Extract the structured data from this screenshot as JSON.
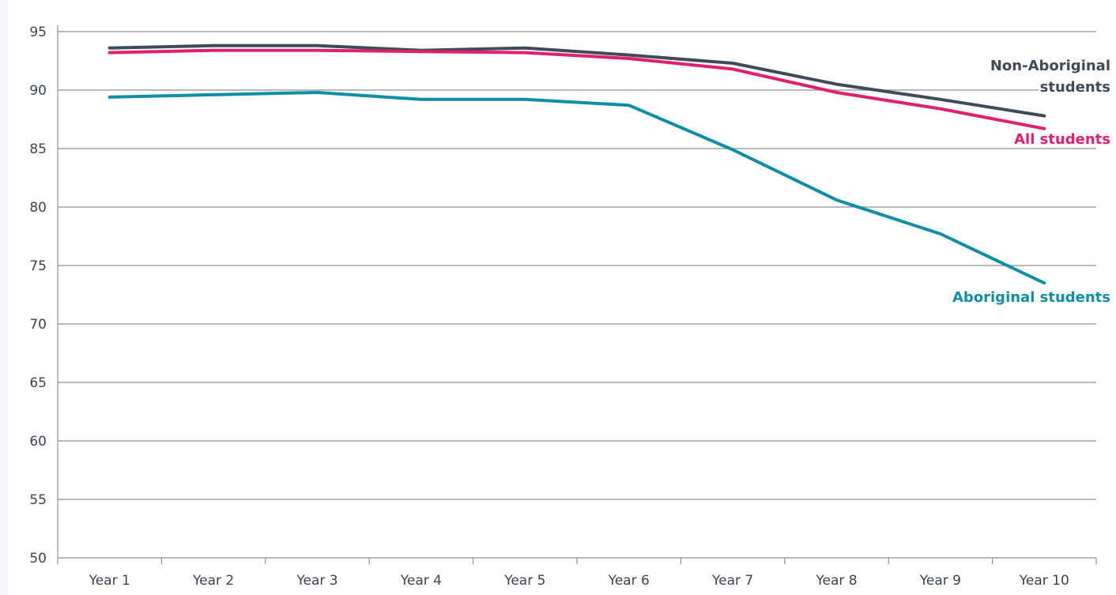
{
  "chart_data": {
    "type": "line",
    "title": "",
    "xlabel": "",
    "ylabel": "",
    "categories": [
      "Year 1",
      "Year 2",
      "Year 3",
      "Year 4",
      "Year 5",
      "Year 6",
      "Year 7",
      "Year 8",
      "Year 9",
      "Year 10"
    ],
    "ylim": [
      50,
      95
    ],
    "yticks": [
      50,
      55,
      60,
      65,
      70,
      75,
      80,
      85,
      90,
      95
    ],
    "grid": true,
    "legend": "inline labels at right end of lines",
    "series": [
      {
        "name": "Non-Aboriginal students",
        "label_lines": [
          "Non-Aboriginal",
          "students"
        ],
        "color": "#3f4a5a",
        "values": [
          93.6,
          93.8,
          93.8,
          93.4,
          93.6,
          93.0,
          92.3,
          90.5,
          89.2,
          87.8
        ]
      },
      {
        "name": "All students",
        "label_lines": [
          "All students"
        ],
        "color": "#e0206f",
        "values": [
          93.2,
          93.4,
          93.4,
          93.3,
          93.2,
          92.7,
          91.8,
          89.8,
          88.4,
          86.7
        ]
      },
      {
        "name": "Aboriginal students",
        "label_lines": [
          "Aboriginal students"
        ],
        "color": "#0f8ea6",
        "values": [
          89.4,
          89.6,
          89.8,
          89.2,
          89.2,
          88.7,
          84.9,
          80.6,
          77.7,
          73.5
        ]
      }
    ]
  }
}
